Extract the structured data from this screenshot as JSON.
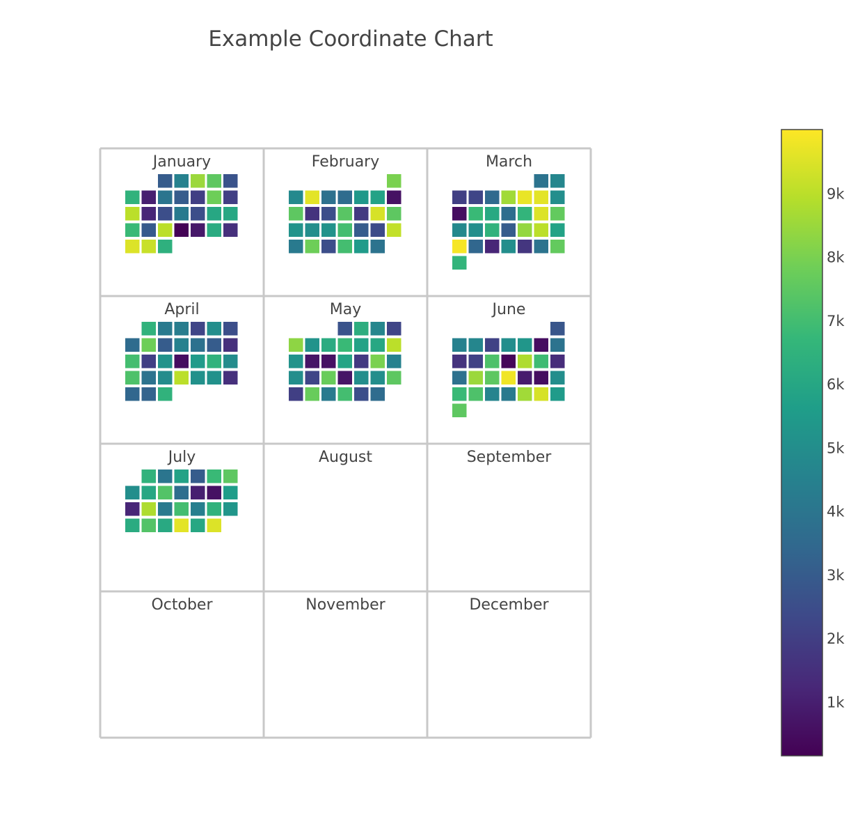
{
  "chart_data": {
    "type": "heatmap",
    "title": "Example Coordinate Chart",
    "layout": "calendar grid, 3 columns x 4 rows, weeks as rows, weekdays as columns",
    "colorscale": "viridis",
    "colorscale_stops": [
      "#440154",
      "#482878",
      "#3e4989",
      "#31688e",
      "#26828e",
      "#1f9e89",
      "#35b779",
      "#6ece58",
      "#b5de2b",
      "#fde725"
    ],
    "zmin": 150,
    "zmax": 10000,
    "colorbar_ticks": [
      {
        "value": 1000,
        "label": "1k"
      },
      {
        "value": 2000,
        "label": "2k"
      },
      {
        "value": 3000,
        "label": "3k"
      },
      {
        "value": 4000,
        "label": "4k"
      },
      {
        "value": 5000,
        "label": "5k"
      },
      {
        "value": 6000,
        "label": "6k"
      },
      {
        "value": 7000,
        "label": "7k"
      },
      {
        "value": 8000,
        "label": "8k"
      },
      {
        "value": 9000,
        "label": "9k"
      }
    ],
    "months": [
      {
        "name": "January",
        "start_weekday": 2,
        "values": [
          3000,
          4500,
          8500,
          7500,
          2700,
          6500,
          1000,
          4000,
          3000,
          2000,
          7800,
          2000,
          9000,
          1200,
          2500,
          4200,
          2500,
          6000,
          6000,
          6800,
          2900,
          9000,
          200,
          800,
          6200,
          1500,
          9500,
          9200,
          6400
        ]
      },
      {
        "name": "February",
        "start_weekday": 6,
        "values": [
          8000,
          4800,
          9600,
          3800,
          3600,
          5400,
          5800,
          600,
          7500,
          1600,
          2500,
          7400,
          1800,
          9400,
          7500,
          5200,
          5000,
          5200,
          7000,
          3000,
          2400,
          9100,
          4200,
          7800,
          2500,
          7000,
          5500,
          3900
        ]
      },
      {
        "name": "March",
        "start_weekday": 5,
        "values": [
          3900,
          4700,
          2000,
          2200,
          3500,
          8600,
          9700,
          9600,
          5000,
          500,
          6800,
          6100,
          3700,
          6600,
          9500,
          7600,
          4800,
          5000,
          6500,
          3000,
          8400,
          9000,
          5800,
          9900,
          3400,
          1200,
          5000,
          1700,
          3900,
          7600,
          6600
        ]
      },
      {
        "name": "April",
        "start_weekday": 1,
        "values": [
          6500,
          4200,
          4300,
          2200,
          5000,
          2500,
          3600,
          7800,
          3000,
          4500,
          3800,
          3000,
          1500,
          7000,
          2000,
          5200,
          500,
          5500,
          6500,
          4900,
          7200,
          3900,
          4900,
          9000,
          5100,
          5100,
          1500,
          3400,
          3300,
          6500
        ]
      },
      {
        "name": "May",
        "start_weekday": 3,
        "values": [
          2700,
          6300,
          4700,
          2200,
          8300,
          5200,
          6200,
          6800,
          5800,
          6000,
          9000,
          5200,
          700,
          600,
          5900,
          1800,
          8000,
          4500,
          5000,
          2200,
          7700,
          700,
          5000,
          5000,
          7500,
          2000,
          7700,
          4200,
          7000,
          2500,
          3600
        ]
      },
      {
        "name": "June",
        "start_weekday": 6,
        "values": [
          2800,
          4500,
          4700,
          2100,
          5000,
          5300,
          500,
          3900,
          1600,
          2100,
          7200,
          300,
          8800,
          6900,
          1400,
          3800,
          8500,
          7500,
          9800,
          900,
          500,
          5000,
          6800,
          7200,
          4600,
          4200,
          8600,
          9400,
          5500,
          7500
        ]
      },
      {
        "name": "July",
        "start_weekday": 1,
        "values": [
          6500,
          4000,
          5800,
          3000,
          6800,
          7500,
          5000,
          6000,
          7300,
          3700,
          1000,
          600,
          5600,
          1200,
          8800,
          4200,
          7000,
          4400,
          6500,
          5300,
          6200,
          7300,
          6100,
          9600,
          6000,
          9500
        ]
      },
      {
        "name": "August",
        "start_weekday": 0,
        "values": []
      },
      {
        "name": "September",
        "start_weekday": 0,
        "values": []
      },
      {
        "name": "October",
        "start_weekday": 0,
        "values": []
      },
      {
        "name": "November",
        "start_weekday": 0,
        "values": []
      },
      {
        "name": "December",
        "start_weekday": 0,
        "values": []
      }
    ]
  }
}
